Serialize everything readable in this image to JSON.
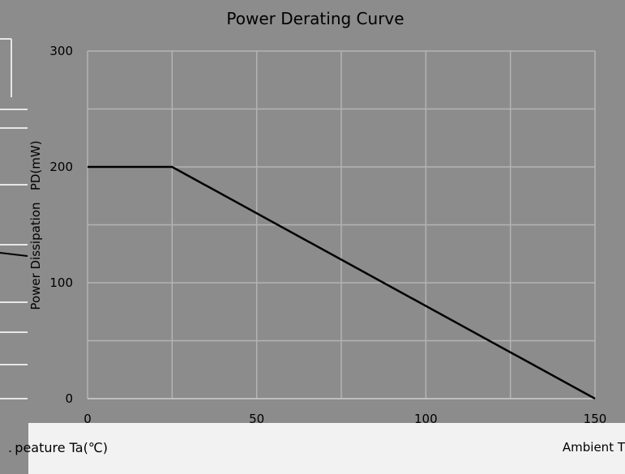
{
  "chart_data": {
    "type": "line",
    "title": "Power Derating Curve",
    "ylabel": "Power Dissipation   PD(mW)",
    "xlabel_fragments": [
      ". peature Ta(℃)",
      "Ambient T"
    ],
    "xlim": [
      0,
      150
    ],
    "ylim": [
      0,
      300
    ],
    "x_ticks": [
      "0",
      "50",
      "100",
      "150"
    ],
    "y_ticks": [
      "0",
      "100",
      "200",
      "300"
    ],
    "grid": true,
    "series": [
      {
        "x": [
          0,
          25,
          150
        ],
        "y": [
          200,
          200,
          0
        ]
      }
    ]
  },
  "colors": {
    "background": "#8c8c8c",
    "plot_area": "#8c8c8c",
    "grid": "#b4b4b4",
    "line": "#000000",
    "band": "#f2f2f2"
  }
}
